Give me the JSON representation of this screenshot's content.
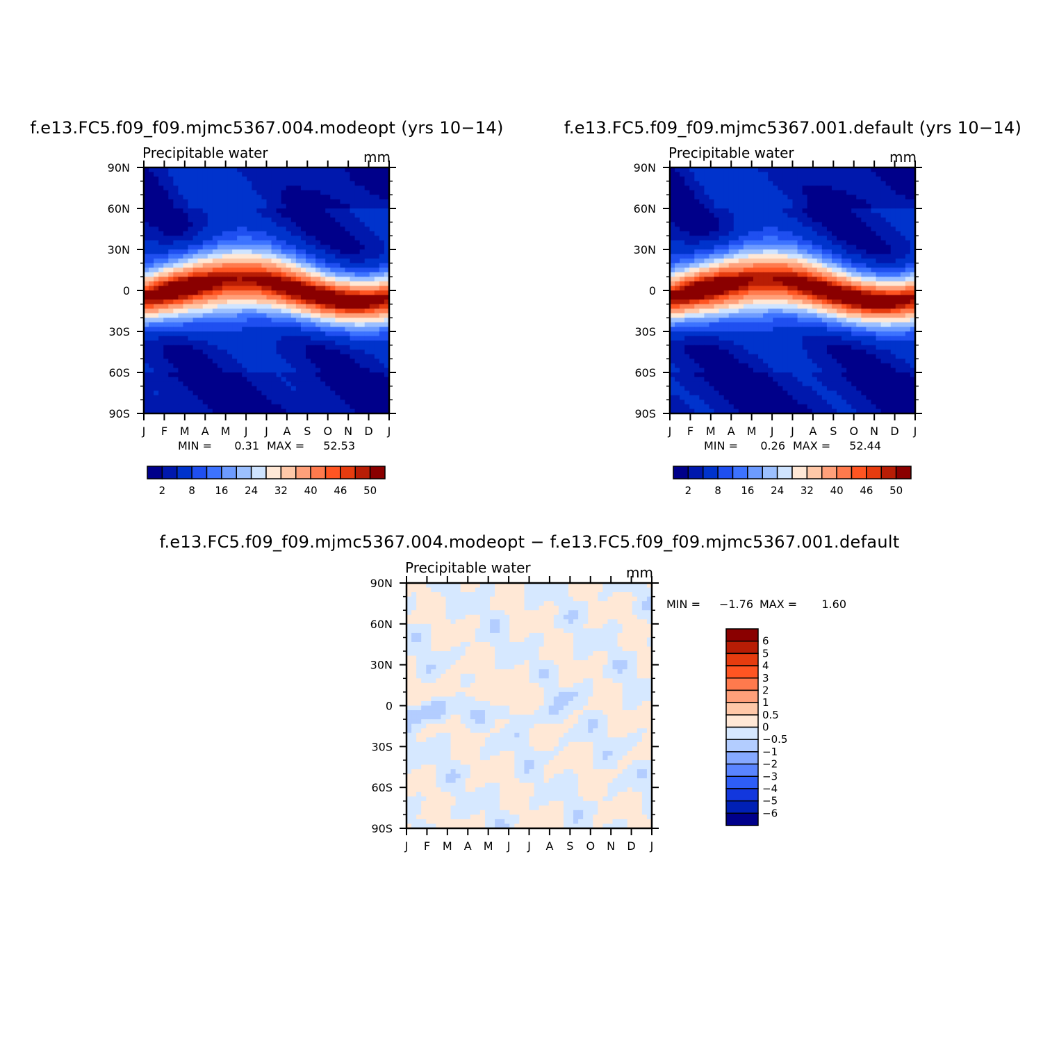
{
  "chart_data": [
    {
      "type": "heatmap",
      "title": "f.e13.FC5.f09_f09.mjmc5367.004.modeopt (yrs 10−14)",
      "variable": "Precipitable water",
      "units": "mm",
      "stats": {
        "min_label": "MIN =",
        "min": "0.31",
        "max_label": "MAX =",
        "max": "52.53"
      },
      "x_ticks": [
        "J",
        "F",
        "M",
        "A",
        "M",
        "J",
        "J",
        "A",
        "S",
        "O",
        "N",
        "D",
        "J"
      ],
      "y_ticks": [
        "90N",
        "60N",
        "30N",
        "0",
        "30S",
        "60S",
        "90S"
      ],
      "colorbar": {
        "orientation": "horizontal",
        "labels": [
          "2",
          "8",
          "16",
          "24",
          "32",
          "40",
          "46",
          "50"
        ],
        "levels": [
          2,
          4,
          8,
          12,
          16,
          20,
          24,
          28,
          32,
          36,
          40,
          44,
          46,
          48,
          50,
          52
        ],
        "colors": [
          "#00008a",
          "#0018ad",
          "#0033cc",
          "#1f4ff0",
          "#3d73ff",
          "#6d9bff",
          "#9cc0ff",
          "#cfe4ff",
          "#ffe8d6",
          "#ffc8a8",
          "#ffa07a",
          "#ff7a4d",
          "#ff5522",
          "#e63c0f",
          "#b81d05",
          "#8a0000"
        ]
      }
    },
    {
      "type": "heatmap",
      "title": "f.e13.FC5.f09_f09.mjmc5367.001.default (yrs 10−14)",
      "variable": "Precipitable water",
      "units": "mm",
      "stats": {
        "min_label": "MIN =",
        "min": "0.26",
        "max_label": "MAX =",
        "max": "52.44"
      },
      "x_ticks": [
        "J",
        "F",
        "M",
        "A",
        "M",
        "J",
        "J",
        "A",
        "S",
        "O",
        "N",
        "D",
        "J"
      ],
      "y_ticks": [
        "90N",
        "60N",
        "30N",
        "0",
        "30S",
        "60S",
        "90S"
      ],
      "colorbar": {
        "orientation": "horizontal",
        "labels": [
          "2",
          "8",
          "16",
          "24",
          "32",
          "40",
          "46",
          "50"
        ],
        "levels": [
          2,
          4,
          8,
          12,
          16,
          20,
          24,
          28,
          32,
          36,
          40,
          44,
          46,
          48,
          50,
          52
        ],
        "colors": [
          "#00008a",
          "#0018ad",
          "#0033cc",
          "#1f4ff0",
          "#3d73ff",
          "#6d9bff",
          "#9cc0ff",
          "#cfe4ff",
          "#ffe8d6",
          "#ffc8a8",
          "#ffa07a",
          "#ff7a4d",
          "#ff5522",
          "#e63c0f",
          "#b81d05",
          "#8a0000"
        ]
      }
    },
    {
      "type": "heatmap",
      "title": "f.e13.FC5.f09_f09.mjmc5367.004.modeopt − f.e13.FC5.f09_f09.mjmc5367.001.default",
      "variable": "Precipitable water",
      "units": "mm",
      "stats": {
        "min_label": "MIN =",
        "min": "−1.76",
        "max_label": "MAX =",
        "max": "1.60"
      },
      "x_ticks": [
        "J",
        "F",
        "M",
        "A",
        "M",
        "J",
        "J",
        "A",
        "S",
        "O",
        "N",
        "D",
        "J"
      ],
      "y_ticks": [
        "90N",
        "60N",
        "30N",
        "0",
        "30S",
        "60S",
        "90S"
      ],
      "colorbar": {
        "orientation": "vertical",
        "labels": [
          "6",
          "5",
          "4",
          "3",
          "2",
          "1",
          "0.5",
          "0",
          "−0.5",
          "−1",
          "−2",
          "−3",
          "−4",
          "−5",
          "−6"
        ],
        "colors_top_to_bottom": [
          "#8a0000",
          "#b81d05",
          "#e63c0f",
          "#ff5522",
          "#ff7a4d",
          "#ffa07a",
          "#ffc8a8",
          "#ffe8d6",
          "#d6e8ff",
          "#b3cdff",
          "#86a9ff",
          "#5a85ff",
          "#2e5ef7",
          "#1237dd",
          "#0020b5",
          "#00008a"
        ]
      }
    }
  ]
}
